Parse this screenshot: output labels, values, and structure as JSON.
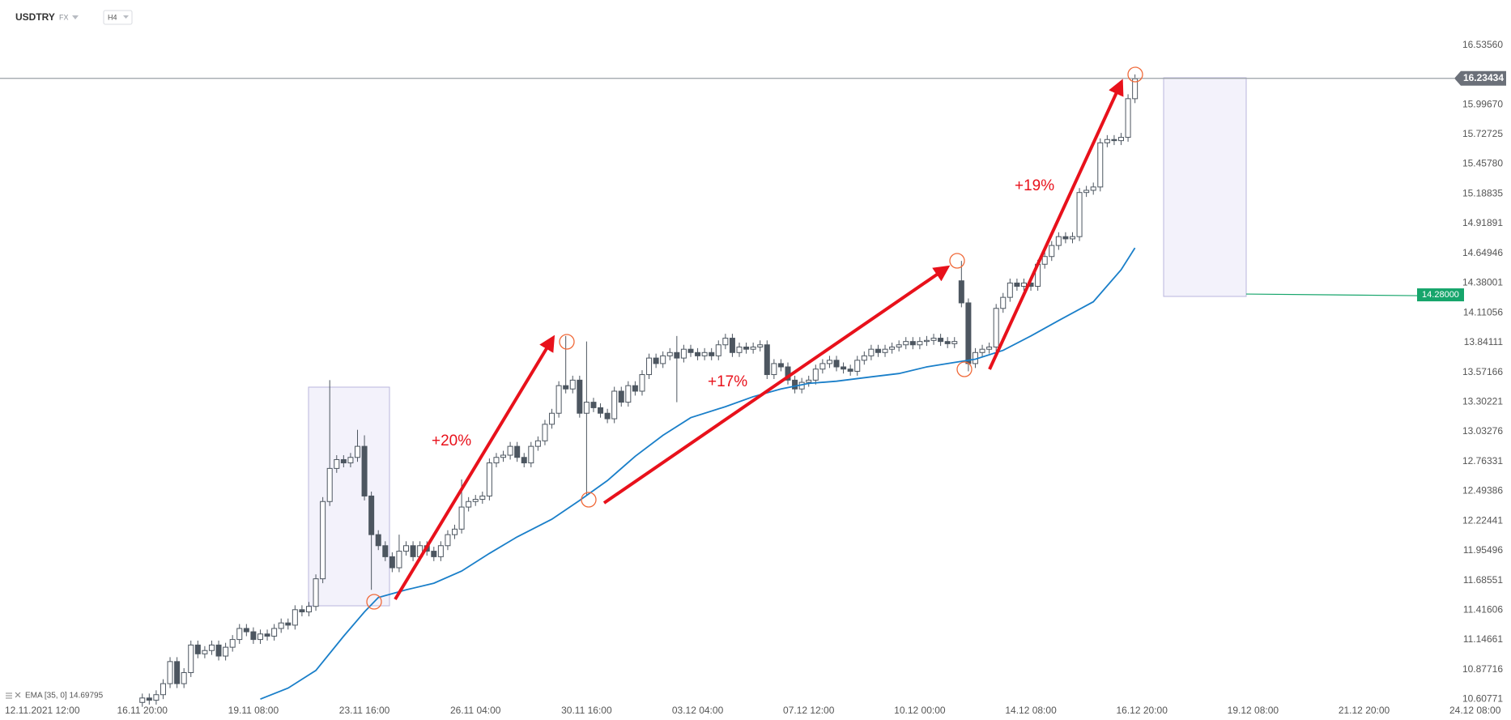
{
  "chart_data": {
    "type": "candlestick",
    "title": "USDTRY",
    "market": "FX",
    "interval": "H4",
    "indicator_label": "EMA [35, 0] 14.69795",
    "annotations": [
      "+20%",
      "+17%",
      "+19%"
    ],
    "up_color": "#ffffff",
    "down_color": "#4d5660",
    "outline_color": "#4d5660",
    "x": [
      16,
      17,
      18,
      19,
      20,
      21,
      22,
      23,
      24,
      25,
      26,
      27,
      28,
      29,
      30,
      31,
      32,
      33,
      34,
      35,
      36,
      37,
      38,
      39,
      40,
      41,
      42,
      43,
      44,
      45,
      46,
      47,
      48,
      49,
      50,
      51,
      52,
      53,
      54,
      55,
      56,
      57,
      58,
      59,
      60,
      61,
      62,
      63,
      64,
      65,
      66,
      67,
      68,
      69,
      70,
      71,
      72,
      73,
      74,
      75,
      76,
      77,
      78,
      79,
      80,
      81,
      82,
      83,
      84,
      85,
      86,
      87,
      88,
      89,
      90,
      91,
      92,
      93,
      94,
      95,
      96,
      97,
      98,
      99,
      100,
      101,
      102,
      103,
      104,
      105,
      106,
      107,
      108,
      109,
      110,
      111,
      112,
      113,
      114,
      115,
      116,
      117,
      118,
      119,
      120,
      121,
      122,
      123,
      124,
      125,
      126,
      127,
      128,
      129,
      130,
      131,
      132,
      133,
      134,
      135,
      136,
      137,
      138,
      139,
      140,
      141,
      142,
      143,
      144,
      145,
      146,
      147,
      148,
      149,
      150,
      151,
      152,
      153,
      154,
      155,
      156,
      157,
      158,
      159
    ],
    "open": [
      10.58,
      10.62,
      10.6,
      10.65,
      10.75,
      10.95,
      10.75,
      10.85,
      11.1,
      11.02,
      11.05,
      11.1,
      11.0,
      11.08,
      11.15,
      11.25,
      11.22,
      11.15,
      11.2,
      11.18,
      11.25,
      11.3,
      11.28,
      11.42,
      11.4,
      11.45,
      11.7,
      12.4,
      12.7,
      12.78,
      12.75,
      12.8,
      12.9,
      12.45,
      12.1,
      12.0,
      11.9,
      11.8,
      11.95,
      12.0,
      11.9,
      12.0,
      11.95,
      11.9,
      12.0,
      12.1,
      12.15,
      12.35,
      12.4,
      12.42,
      12.45,
      12.75,
      12.8,
      12.82,
      12.9,
      12.8,
      12.75,
      12.9,
      12.95,
      13.1,
      13.2,
      13.45,
      13.42,
      13.5,
      13.2,
      13.3,
      13.25,
      13.2,
      13.15,
      13.4,
      13.3,
      13.45,
      13.4,
      13.55,
      13.7,
      13.65,
      13.72,
      13.75,
      13.7,
      13.78,
      13.75,
      13.72,
      13.75,
      13.72,
      13.82,
      13.88,
      13.75,
      13.8,
      13.78,
      13.8,
      13.82,
      13.55,
      13.65,
      13.62,
      13.5,
      13.42,
      13.48,
      13.5,
      13.6,
      13.65,
      13.68,
      13.62,
      13.6,
      13.58,
      13.68,
      13.72,
      13.78,
      13.75,
      13.78,
      13.8,
      13.82,
      13.85,
      13.82,
      13.85,
      13.86,
      13.88,
      13.85,
      13.83,
      14.4,
      14.2,
      13.65,
      13.75,
      13.78,
      13.8,
      14.15,
      14.25,
      14.38,
      14.35,
      14.38,
      14.35,
      14.55,
      14.62,
      14.72,
      14.8,
      14.78,
      14.8,
      15.2,
      15.22,
      15.25,
      15.65,
      15.68,
      15.67,
      15.7,
      16.05
    ],
    "high": [
      10.66,
      10.66,
      10.69,
      10.79,
      10.99,
      10.99,
      10.89,
      11.14,
      11.14,
      11.09,
      11.14,
      11.14,
      11.12,
      11.19,
      11.29,
      11.29,
      11.26,
      11.24,
      11.24,
      11.29,
      11.34,
      11.34,
      11.46,
      11.46,
      11.49,
      11.74,
      12.44,
      13.5,
      12.82,
      12.82,
      12.84,
      13.05,
      13.0,
      12.49,
      12.14,
      12.04,
      11.94,
      12.1,
      12.04,
      12.04,
      12.04,
      12.04,
      11.99,
      12.04,
      12.14,
      12.19,
      12.6,
      12.44,
      12.46,
      12.49,
      12.79,
      12.84,
      12.86,
      12.94,
      12.94,
      12.84,
      12.94,
      12.99,
      13.14,
      13.24,
      13.49,
      13.9,
      13.54,
      13.54,
      13.85,
      13.34,
      13.29,
      13.24,
      13.44,
      13.44,
      13.49,
      13.49,
      13.59,
      13.74,
      13.74,
      13.76,
      13.79,
      13.9,
      13.82,
      13.82,
      13.79,
      13.79,
      13.79,
      13.86,
      13.92,
      13.92,
      13.84,
      13.84,
      13.84,
      13.86,
      13.86,
      13.69,
      13.69,
      13.66,
      13.54,
      13.52,
      13.54,
      13.64,
      13.69,
      13.72,
      13.72,
      13.66,
      13.64,
      13.72,
      13.76,
      13.82,
      13.82,
      13.82,
      13.84,
      13.86,
      13.89,
      13.89,
      13.89,
      13.9,
      13.92,
      13.92,
      13.89,
      13.89,
      14.58,
      14.24,
      13.79,
      13.82,
      13.84,
      14.19,
      14.29,
      14.42,
      14.42,
      14.42,
      14.42,
      14.59,
      14.66,
      14.76,
      14.84,
      14.84,
      14.84,
      15.24,
      15.26,
      15.29,
      15.69,
      15.72,
      15.72,
      15.74,
      16.09,
      16.27
    ],
    "low": [
      10.54,
      10.56,
      10.56,
      10.61,
      10.71,
      10.71,
      10.71,
      10.81,
      10.98,
      10.98,
      11.01,
      10.96,
      10.96,
      11.04,
      11.11,
      11.18,
      11.11,
      11.11,
      11.14,
      11.14,
      11.21,
      11.24,
      11.24,
      11.36,
      11.36,
      11.41,
      11.66,
      12.36,
      12.66,
      12.71,
      12.71,
      12.76,
      12.41,
      11.6,
      11.96,
      11.86,
      11.76,
      11.76,
      11.91,
      11.86,
      11.86,
      11.91,
      11.86,
      11.86,
      11.96,
      12.06,
      12.11,
      12.31,
      12.36,
      12.38,
      12.41,
      12.71,
      12.76,
      12.78,
      12.76,
      12.71,
      12.71,
      12.86,
      12.91,
      13.06,
      13.16,
      13.38,
      13.38,
      13.16,
      12.45,
      13.21,
      13.16,
      13.11,
      13.11,
      13.26,
      13.26,
      13.36,
      13.36,
      13.51,
      13.61,
      13.61,
      13.68,
      13.3,
      13.66,
      13.71,
      13.68,
      13.68,
      13.68,
      13.68,
      13.78,
      13.71,
      13.71,
      13.74,
      13.74,
      13.76,
      13.51,
      13.51,
      13.58,
      13.46,
      13.38,
      13.38,
      13.44,
      13.46,
      13.56,
      13.61,
      13.58,
      13.56,
      13.54,
      13.54,
      13.64,
      13.68,
      13.71,
      13.71,
      13.74,
      13.76,
      13.78,
      13.78,
      13.78,
      13.81,
      13.82,
      13.81,
      13.79,
      13.79,
      14.16,
      13.58,
      13.61,
      13.71,
      13.74,
      13.76,
      14.11,
      14.21,
      14.31,
      14.31,
      14.31,
      14.31,
      14.51,
      14.58,
      14.68,
      14.74,
      14.74,
      14.76,
      15.16,
      15.18,
      15.21,
      15.61,
      15.63,
      15.63,
      15.66,
      16.01
    ],
    "close": [
      10.62,
      10.6,
      10.65,
      10.75,
      10.95,
      10.75,
      10.85,
      11.1,
      11.02,
      11.05,
      11.1,
      11.0,
      11.08,
      11.15,
      11.25,
      11.22,
      11.15,
      11.2,
      11.18,
      11.25,
      11.3,
      11.28,
      11.42,
      11.4,
      11.45,
      11.7,
      12.4,
      12.7,
      12.78,
      12.75,
      12.8,
      12.9,
      12.45,
      12.1,
      12.0,
      11.9,
      11.8,
      11.95,
      12.0,
      11.9,
      12.0,
      11.95,
      11.9,
      12.0,
      12.1,
      12.15,
      12.35,
      12.4,
      12.42,
      12.45,
      12.75,
      12.8,
      12.82,
      12.9,
      12.8,
      12.75,
      12.9,
      12.95,
      13.1,
      13.2,
      13.45,
      13.42,
      13.5,
      13.2,
      13.3,
      13.25,
      13.2,
      13.15,
      13.4,
      13.3,
      13.45,
      13.4,
      13.55,
      13.7,
      13.65,
      13.72,
      13.75,
      13.7,
      13.78,
      13.75,
      13.72,
      13.75,
      13.72,
      13.82,
      13.88,
      13.75,
      13.8,
      13.78,
      13.8,
      13.82,
      13.55,
      13.65,
      13.62,
      13.5,
      13.42,
      13.48,
      13.5,
      13.6,
      13.65,
      13.68,
      13.62,
      13.6,
      13.58,
      13.68,
      13.72,
      13.78,
      13.75,
      13.78,
      13.8,
      13.82,
      13.85,
      13.82,
      13.85,
      13.86,
      13.88,
      13.85,
      13.83,
      13.85,
      14.2,
      13.65,
      13.75,
      13.78,
      13.8,
      14.15,
      14.25,
      14.38,
      14.35,
      14.38,
      14.35,
      14.55,
      14.62,
      14.72,
      14.8,
      14.78,
      14.8,
      15.2,
      15.22,
      15.25,
      15.65,
      15.68,
      15.67,
      15.7,
      16.05,
      16.23
    ],
    "ema": {
      "color": "#1a7fc9",
      "x": [
        33,
        37,
        41,
        45,
        48,
        50,
        54,
        58,
        62,
        66,
        70,
        75,
        79,
        83,
        87,
        91,
        95,
        100,
        104,
        108,
        112,
        116,
        121,
        125,
        129,
        133,
        136,
        140,
        144,
        148,
        153,
        157,
        159
      ],
      "values": [
        10.61,
        10.71,
        10.87,
        11.18,
        11.4,
        11.53,
        11.6,
        11.66,
        11.77,
        11.93,
        12.08,
        12.24,
        12.41,
        12.59,
        12.81,
        13.0,
        13.16,
        13.26,
        13.35,
        13.42,
        13.47,
        13.49,
        13.53,
        13.56,
        13.62,
        13.66,
        13.69,
        13.77,
        13.9,
        14.04,
        14.21,
        14.5,
        14.69795
      ]
    },
    "current_price": 16.23434,
    "current_price_color": "#6b7079",
    "level": {
      "value": 14.28,
      "label": "14.28000"
    },
    "level_color": "#16a56b",
    "xlim": [
      -4.5,
      212
    ],
    "ylim": [
      10.56,
      16.68
    ],
    "xticks": [
      {
        "value": 0,
        "label": "12.11.2021 12:00"
      },
      {
        "value": 16,
        "label": "16.11 20:00"
      },
      {
        "value": 32,
        "label": "19.11 08:00"
      },
      {
        "value": 48,
        "label": "23.11 16:00"
      },
      {
        "value": 64,
        "label": "26.11 04:00"
      },
      {
        "value": 80,
        "label": "30.11 16:00"
      },
      {
        "value": 96,
        "label": "03.12 04:00"
      },
      {
        "value": 112,
        "label": "07.12 12:00"
      },
      {
        "value": 128,
        "label": "10.12 00:00"
      },
      {
        "value": 144,
        "label": "14.12 08:00"
      },
      {
        "value": 160,
        "label": "16.12 20:00"
      },
      {
        "value": 176,
        "label": "19.12 08:00"
      },
      {
        "value": 192,
        "label": "21.12 20:00"
      },
      {
        "value": 208,
        "label": "24.12 08:00"
      }
    ],
    "yticks": [
      {
        "value": 16.5356,
        "label": "16.53560"
      },
      {
        "value": 15.9967,
        "label": "15.99670"
      },
      15.72725,
      {
        "value": 15.4578,
        "label": "15.45780"
      },
      15.18835,
      14.91891,
      14.64946,
      14.38001,
      14.11056,
      13.84111,
      13.57166,
      13.30221,
      13.03276,
      12.76331,
      12.49386,
      12.22441,
      11.95496,
      11.68551,
      11.41606,
      11.14661,
      10.87716,
      10.60771
    ]
  }
}
